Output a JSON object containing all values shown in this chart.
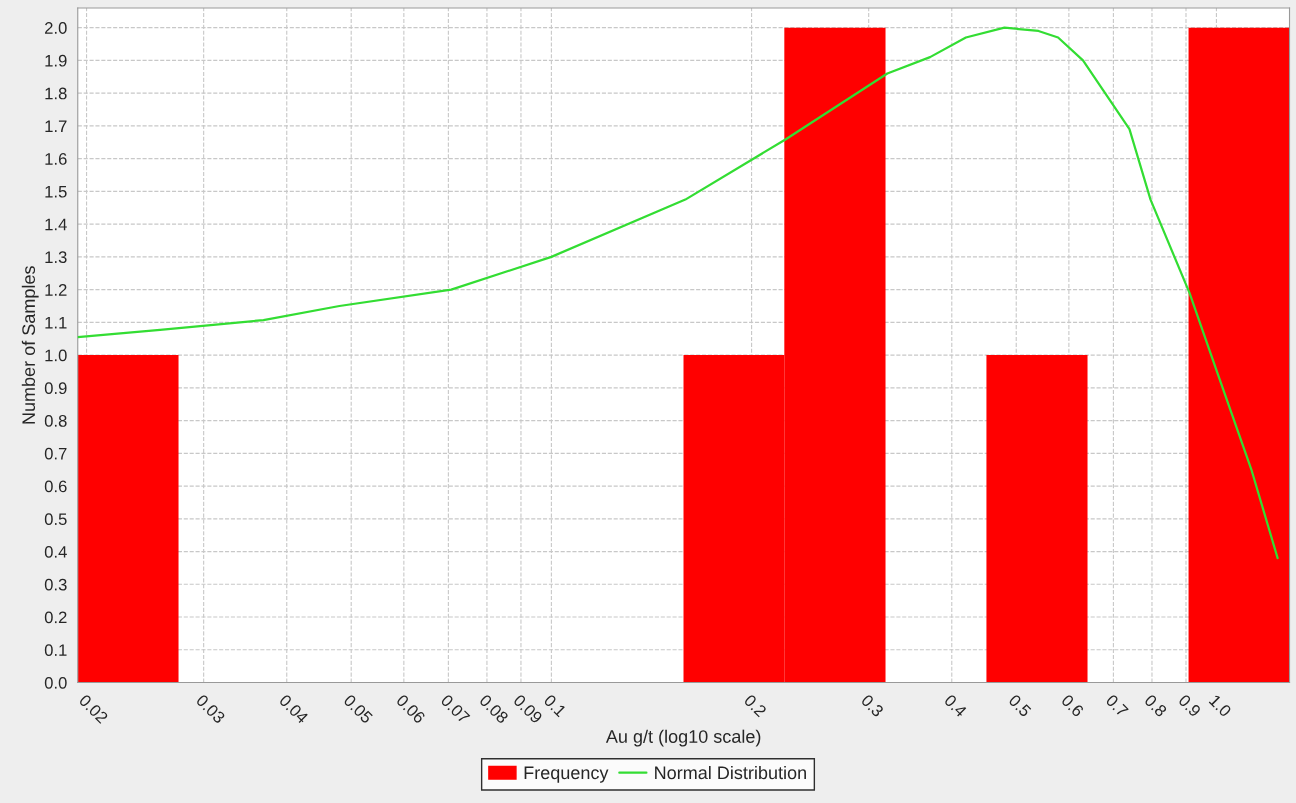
{
  "chart_data": {
    "type": "histogram",
    "xlabel": "Au g/t (log10 scale)",
    "ylabel": "Number of Samples",
    "series": [
      {
        "name": "Frequency",
        "color": "#ff0000",
        "bins": [
          0.0194,
          0.0275,
          0.158,
          0.224,
          0.318,
          0.451,
          0.64,
          0.908,
          1.288
        ],
        "values": [
          1,
          0,
          1,
          2,
          0,
          1,
          0,
          2
        ]
      },
      {
        "name": "Normal Distribution",
        "type": "line",
        "color": "#33dd33",
        "x": [
          0.0194,
          0.0258,
          0.0369,
          0.048,
          0.0707,
          0.1,
          0.159,
          0.2255,
          0.32,
          0.371,
          0.42,
          0.48,
          0.54,
          0.578,
          0.63,
          0.74,
          0.796,
          0.911,
          1.0,
          1.13,
          1.236
        ],
        "values": [
          1.055,
          1.077,
          1.107,
          1.15,
          1.2,
          1.3,
          1.475,
          1.66,
          1.86,
          1.91,
          1.97,
          2.0,
          1.99,
          1.97,
          1.9,
          1.69,
          1.475,
          1.19,
          0.954,
          0.647,
          0.38
        ]
      }
    ],
    "log": "x",
    "xlim": [
      0.0194,
      1.288
    ],
    "xticks": [
      0.02,
      0.03,
      0.04,
      0.05,
      0.06,
      0.07,
      0.08,
      0.09,
      0.1,
      0.2,
      0.3,
      0.4,
      0.5,
      0.6,
      0.7,
      0.8,
      0.9,
      {
        "value": 1,
        "label": "1.0"
      }
    ],
    "ylim": [
      0,
      2.06
    ],
    "yticks": [
      {
        "value": 0,
        "label": "0.0"
      },
      0.1,
      0.2,
      0.3,
      0.4,
      0.5,
      0.6,
      0.7,
      0.8,
      0.9,
      {
        "value": 1,
        "label": "1.0"
      },
      1.1,
      1.2,
      1.3,
      1.4,
      1.5,
      1.6,
      1.7,
      1.8,
      1.9,
      {
        "value": 2,
        "label": "2.0"
      }
    ],
    "grid": true,
    "legend": "bottom"
  }
}
